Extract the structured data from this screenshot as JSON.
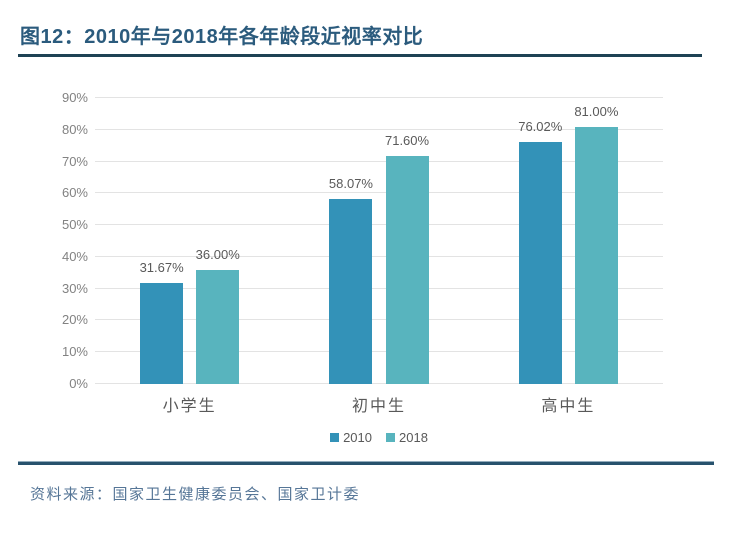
{
  "header": {
    "title": "图12：2010年与2018年各年龄段近视率对比"
  },
  "chart_data": {
    "type": "bar",
    "title": "2010年与2018年各年龄段近视率对比",
    "categories": [
      "小学生",
      "初中生",
      "高中生"
    ],
    "series": [
      {
        "name": "2010",
        "color": "#3392B8",
        "values": [
          31.67,
          58.07,
          76.02
        ],
        "value_labels": [
          "31.67%",
          "58.07%",
          "76.02%"
        ]
      },
      {
        "name": "2018",
        "color": "#58B4BE",
        "values": [
          36.0,
          71.6,
          81.0
        ],
        "value_labels": [
          "36.00%",
          "71.60%",
          "81.00%"
        ]
      }
    ],
    "ylim": [
      0,
      90
    ],
    "ytick_step": 10,
    "ytick_labels": [
      "0%",
      "10%",
      "20%",
      "30%",
      "40%",
      "50%",
      "60%",
      "70%",
      "80%",
      "90%"
    ],
    "grid": "horizontal",
    "legend_position": "bottom-center"
  },
  "footer": {
    "source": "资料来源：国家卫生健康委员会、国家卫计委"
  },
  "colors": {
    "title_text": "#2B5B7D",
    "title_rule": "#1E4254",
    "footer_rule": "#28526D",
    "series_2010": "#3392B8",
    "series_2018": "#58B4BE",
    "grid_line": "#E3E3E3",
    "axis_tick_text": "#828282",
    "data_label_text": "#595959",
    "source_text": "#567697"
  }
}
